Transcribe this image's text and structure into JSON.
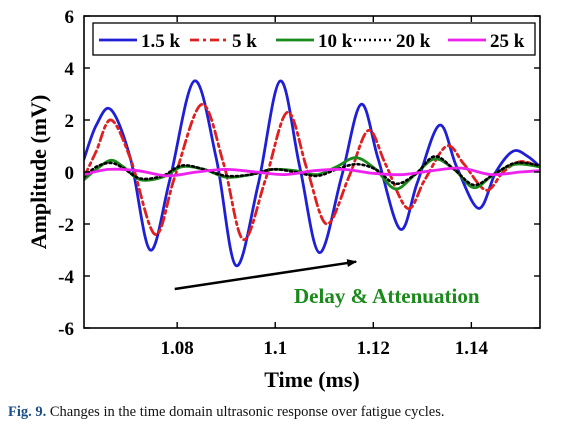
{
  "chart_data": {
    "type": "line",
    "xlabel": "Time (ms)",
    "ylabel": "Amplitude (mV)",
    "xlim": [
      1.061,
      1.154
    ],
    "ylim": [
      -6,
      6
    ],
    "xticks": [
      "1.08",
      "1.1",
      "1.12",
      "1.14"
    ],
    "xtick_values": [
      1.08,
      1.1,
      1.12,
      1.14
    ],
    "yticks": [
      "-6",
      "-4",
      "-2",
      "0",
      "2",
      "4",
      "6"
    ],
    "ytick_values": [
      -6,
      -4,
      -2,
      0,
      2,
      4,
      6
    ],
    "grid": false,
    "legend_position": "top",
    "annotation": {
      "text": "Delay & Attenuation",
      "color": "#1a8a1a",
      "arrow_from": [
        1.0795,
        -4.5
      ],
      "arrow_to": [
        1.1165,
        -3.45
      ]
    },
    "series": [
      {
        "name": "1.5 k",
        "color": "#1f1fd6",
        "style": "solid",
        "x": [
          1.061,
          1.0635,
          1.0665,
          1.0705,
          1.0745,
          1.0785,
          1.0835,
          1.088,
          1.092,
          1.0965,
          1.101,
          1.105,
          1.109,
          1.1135,
          1.1175,
          1.121,
          1.1255,
          1.129,
          1.1335,
          1.137,
          1.1415,
          1.145,
          1.1485,
          1.1515,
          1.154
        ],
        "y": [
          0.5,
          1.8,
          2.4,
          0.5,
          -3.0,
          -0.3,
          3.5,
          0.5,
          -3.6,
          -0.5,
          3.5,
          0.2,
          -3.1,
          -0.2,
          2.6,
          0.5,
          -2.2,
          -0.4,
          1.8,
          0.2,
          -1.4,
          0.0,
          0.8,
          0.6,
          0.2
        ]
      },
      {
        "name": "5 k",
        "color": "#e02020",
        "style": "dashdot",
        "x": [
          1.061,
          1.0635,
          1.0665,
          1.0705,
          1.0755,
          1.0795,
          1.085,
          1.0895,
          1.0935,
          1.098,
          1.1025,
          1.1065,
          1.1105,
          1.115,
          1.119,
          1.1225,
          1.127,
          1.1305,
          1.135,
          1.1385,
          1.143,
          1.1465,
          1.15,
          1.154
        ],
        "y": [
          -0.2,
          0.8,
          2.0,
          0.5,
          -2.4,
          -0.2,
          2.6,
          0.3,
          -2.6,
          -0.3,
          2.3,
          0.1,
          -2.0,
          -0.2,
          1.6,
          0.3,
          -1.4,
          -0.3,
          1.0,
          0.3,
          -0.7,
          0.0,
          0.4,
          0.2
        ]
      },
      {
        "name": "10 k",
        "color": "#1a8a1a",
        "style": "solid",
        "x": [
          1.061,
          1.0635,
          1.0665,
          1.069,
          1.0725,
          1.077,
          1.081,
          1.0855,
          1.09,
          1.095,
          1.0995,
          1.104,
          1.1085,
          1.1125,
          1.1165,
          1.1205,
          1.1245,
          1.1285,
          1.1325,
          1.1365,
          1.1405,
          1.1445,
          1.149,
          1.154
        ],
        "y": [
          -0.3,
          0.1,
          0.45,
          0.2,
          -0.3,
          -0.2,
          0.2,
          0.1,
          -0.2,
          -0.1,
          0.1,
          0.05,
          -0.1,
          0.2,
          0.55,
          0.1,
          -0.65,
          -0.1,
          0.5,
          0.1,
          -0.6,
          -0.1,
          0.3,
          0.2
        ]
      },
      {
        "name": "20 k",
        "color": "#000000",
        "style": "dotted",
        "x": [
          1.061,
          1.0635,
          1.0665,
          1.069,
          1.0725,
          1.077,
          1.081,
          1.0855,
          1.09,
          1.095,
          1.0995,
          1.104,
          1.1085,
          1.1125,
          1.1165,
          1.1205,
          1.1245,
          1.1285,
          1.1325,
          1.1365,
          1.1405,
          1.1445,
          1.149,
          1.154
        ],
        "y": [
          -0.2,
          0.2,
          0.35,
          0.15,
          -0.25,
          -0.15,
          0.25,
          0.1,
          -0.15,
          -0.1,
          0.1,
          0.0,
          -0.15,
          0.1,
          0.3,
          0.1,
          -0.45,
          -0.1,
          0.6,
          0.1,
          -0.5,
          -0.1,
          0.35,
          0.25
        ]
      },
      {
        "name": "25 k",
        "color": "#ee22ee",
        "style": "solid",
        "x": [
          1.061,
          1.066,
          1.072,
          1.078,
          1.084,
          1.09,
          1.096,
          1.102,
          1.108,
          1.114,
          1.12,
          1.126,
          1.132,
          1.138,
          1.144,
          1.15,
          1.154
        ],
        "y": [
          -0.1,
          0.1,
          0.05,
          -0.15,
          0.0,
          0.1,
          0.0,
          -0.1,
          0.05,
          0.1,
          -0.05,
          -0.1,
          0.05,
          0.15,
          -0.1,
          0.0,
          0.05
        ]
      }
    ]
  },
  "caption": {
    "label": "Fig. 9.",
    "text": "Changes in the time domain ultrasonic response over fatigue cycles."
  }
}
